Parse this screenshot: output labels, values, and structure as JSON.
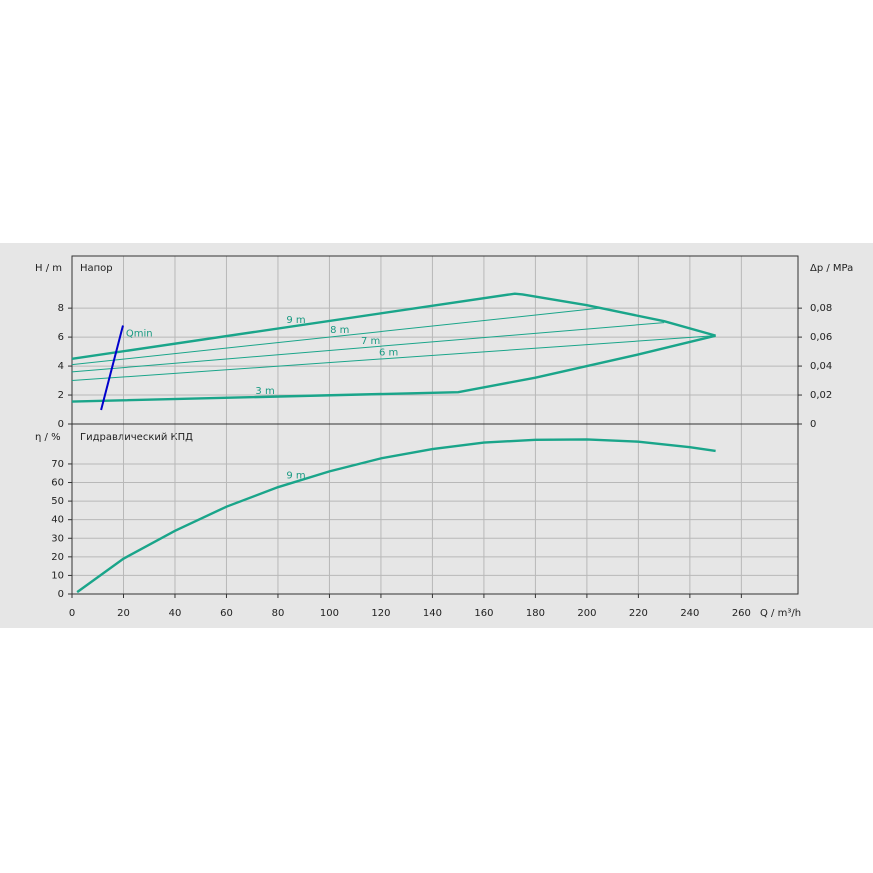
{
  "chart_data": [
    {
      "type": "line",
      "axis_label": "H / m",
      "title": "Напор",
      "y2_axis_label": "Δp / MPa",
      "ylim": [
        0,
        11.6
      ],
      "yticks": [
        0,
        2,
        4,
        6,
        8
      ],
      "y2lim": [
        0,
        0.116
      ],
      "y2ticks": [
        0,
        {
          "value": 0.02,
          "label": "0,02"
        },
        {
          "value": 0.04,
          "label": "0,04"
        },
        {
          "value": 0.06,
          "label": "0,06"
        },
        {
          "value": 0.08,
          "label": "0,08"
        }
      ],
      "grid": true,
      "series": [
        {
          "name": "9 m",
          "color": "#1aa58a",
          "x": [
            0,
            172,
            175,
            200,
            230,
            250
          ],
          "values": [
            4.5,
            9.0,
            8.95,
            8.2,
            7.1,
            6.1
          ]
        },
        {
          "name": "8 m",
          "color": "#1aa58a",
          "x": [
            0,
            205
          ],
          "values": [
            4.1,
            8.0
          ]
        },
        {
          "name": "7 m",
          "color": "#1aa58a",
          "x": [
            0,
            230
          ],
          "values": [
            3.6,
            7.0
          ]
        },
        {
          "name": "6 m",
          "color": "#1aa58a",
          "x": [
            0,
            250
          ],
          "values": [
            3.0,
            6.1
          ]
        },
        {
          "name": "3 m",
          "color": "#1aa58a",
          "x": [
            0,
            150,
            165,
            180,
            200,
            220,
            250
          ],
          "values": [
            1.55,
            2.2,
            2.7,
            3.2,
            4.0,
            4.8,
            6.1
          ]
        },
        {
          "name": "Qmin",
          "color": "#0000cc",
          "x": [
            11.3,
            19.8
          ],
          "values": [
            0.97,
            6.8
          ]
        }
      ]
    },
    {
      "type": "line",
      "axis_label": "η / %",
      "title": "Гидравлический КПД",
      "x_axis_label": "Q / m³/h",
      "xlim": [
        0,
        282
      ],
      "xticks": [
        0,
        20,
        40,
        60,
        80,
        100,
        120,
        140,
        160,
        180,
        200,
        220,
        240,
        260
      ],
      "ylim": [
        0,
        91.5
      ],
      "yticks": [
        0,
        10,
        20,
        30,
        40,
        50,
        60,
        70
      ],
      "grid": true,
      "series": [
        {
          "name": "9 m",
          "color": "#1aa58a",
          "x": [
            2,
            20,
            40,
            60,
            80,
            100,
            120,
            140,
            160,
            180,
            200,
            220,
            240,
            250
          ],
          "values": [
            1,
            19,
            34,
            47,
            57.5,
            66,
            73,
            78,
            81.5,
            83,
            83.2,
            82,
            79,
            77
          ]
        }
      ]
    }
  ]
}
